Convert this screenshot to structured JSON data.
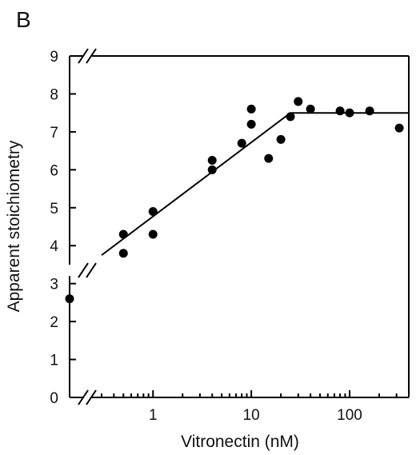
{
  "panel_label": "B",
  "chart_data": {
    "type": "scatter",
    "title": "",
    "xlabel": "Vitronectin (nM)",
    "ylabel": "Apparent stoichiometry",
    "xscale": "log",
    "x_break": true,
    "y_break": true,
    "xlim": [
      0.3,
      400
    ],
    "ylim": [
      0,
      9
    ],
    "x_ticks": [
      1,
      10,
      100
    ],
    "x_tick_labels": [
      "1",
      "10",
      "100"
    ],
    "y_ticks": [
      0,
      1,
      2,
      3,
      4,
      5,
      6,
      7,
      8,
      9
    ],
    "y_tick_labels": [
      "0",
      "1",
      "2",
      "3",
      "4",
      "5",
      "6",
      "7",
      "8",
      "9"
    ],
    "grid": false,
    "series": [
      {
        "x_labels": [
          "0",
          "0.5",
          "0.5",
          "1",
          "1",
          "4",
          "4",
          "8",
          "10",
          "10",
          "15",
          "20",
          "25",
          "30",
          "40",
          "80",
          "100",
          "160",
          "320"
        ],
        "values": [
          2.6,
          4.3,
          3.8,
          4.9,
          4.3,
          6.25,
          6.0,
          6.7,
          7.6,
          7.2,
          6.3,
          6.8,
          7.4,
          7.8,
          7.6,
          7.55,
          7.5,
          7.55,
          7.1
        ],
        "color": "#000000"
      }
    ],
    "fit_line": {
      "x": [
        0.3,
        25,
        400
      ],
      "y": [
        3.75,
        7.5,
        7.5
      ],
      "color": "#000000"
    }
  }
}
